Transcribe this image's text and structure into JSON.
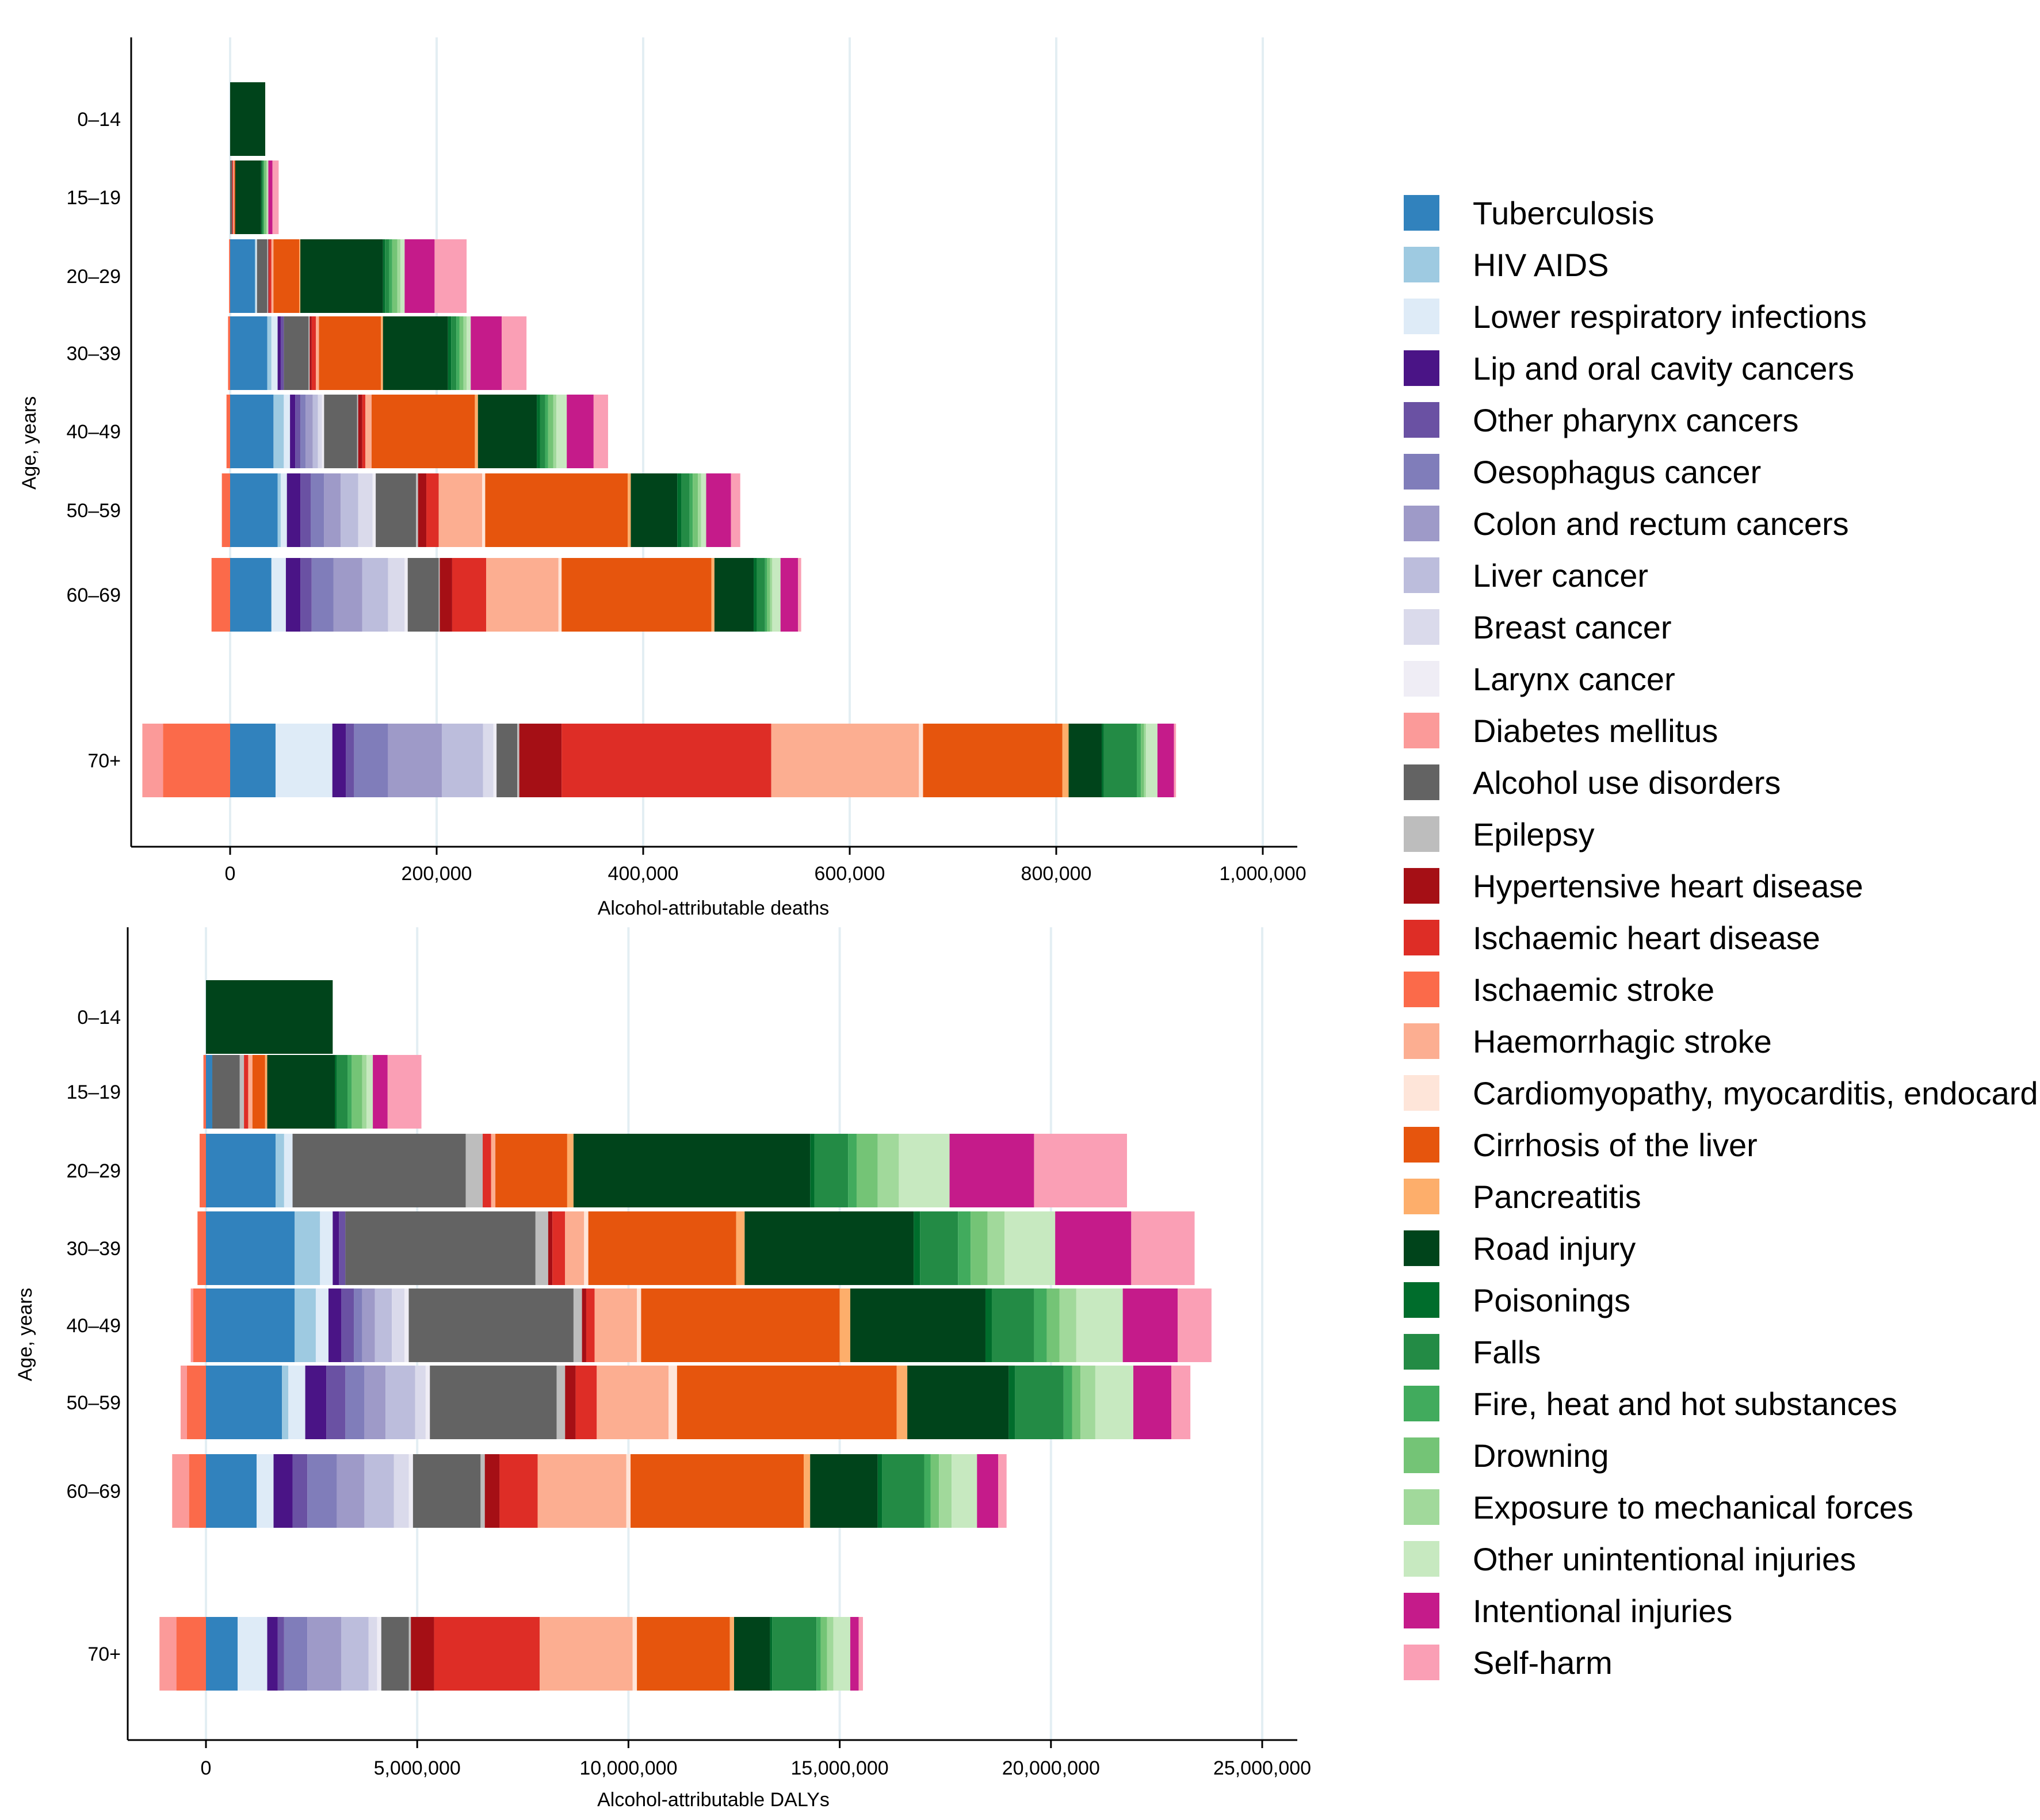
{
  "colors": {
    "Tuberculosis": "#3182bd",
    "HIV AIDS": "#9ecae1",
    "Lower respiratory infections": "#deebf7",
    "Lip and oral cavity cancers": "#4a1486",
    "Other pharynx cancers": "#6a51a3",
    "Oesophagus cancer": "#807dba",
    "Colon and rectum cancers": "#9e9ac8",
    "Liver cancer": "#bcbddc",
    "Breast cancer": "#dadaeb",
    "Larynx cancer": "#efedf5",
    "Diabetes mellitus": "#fb9a99",
    "Alcohol use disorders": "#636363",
    "Epilepsy": "#bdbdbd",
    "Hypertensive heart disease": "#a50f15",
    "Ischaemic heart disease": "#de2d26",
    "Ischaemic stroke": "#fb6a4a",
    "Haemorrhagic stroke": "#fcae91",
    "Cardiomyopathy, myocarditis, endocarditis": "#fee5d9",
    "Cirrhosis of the liver": "#e6550d",
    "Pancreatitis": "#fdae6b",
    "Road injury": "#00441b",
    "Poisonings": "#006d2c",
    "Falls": "#238b45",
    "Fire, heat and hot substances": "#41ab5d",
    "Drowning": "#74c476",
    "Exposure to mechanical forces": "#a1d99b",
    "Other unintentional injuries": "#c7e9c0",
    "Intentional injuries": "#c51b8a",
    "Self-harm": "#fa9fb5"
  },
  "chart_data": [
    {
      "type": "bar",
      "orientation": "horizontal",
      "stacked": true,
      "title": "",
      "xlabel": "Alcohol-attributable deaths",
      "ylabel": "Age, years",
      "xlim": [
        -95000,
        1030000
      ],
      "x_ticks": [
        0,
        200000,
        400000,
        600000,
        800000,
        1000000
      ],
      "x_tick_labels": [
        "0",
        "200,000",
        "400,000",
        "600,000",
        "800,000",
        "1,000,000"
      ],
      "categories": [
        "0–14",
        "15–19",
        "20–29",
        "30–39",
        "40–49",
        "50–59",
        "60–69",
        "70+"
      ],
      "series": [
        {
          "name": "Ischaemic stroke",
          "side": "negative",
          "values": [
            0,
            0,
            -1000,
            -2000,
            -3500,
            -8000,
            -18000,
            -65000
          ]
        },
        {
          "name": "Diabetes mellitus",
          "side": "negative",
          "values": [
            0,
            0,
            0,
            0,
            0,
            0,
            0,
            -20000
          ]
        },
        {
          "name": "Tuberculosis",
          "values": [
            0,
            0,
            24000,
            36000,
            42000,
            46000,
            40000,
            44000
          ]
        },
        {
          "name": "HIV AIDS",
          "values": [
            0,
            0,
            1000,
            4000,
            10000,
            3000,
            0,
            0
          ]
        },
        {
          "name": "Lower respiratory infections",
          "values": [
            0,
            0,
            1000,
            6000,
            6000,
            6000,
            14000,
            55000
          ]
        },
        {
          "name": "Lip and oral cavity cancers",
          "values": [
            0,
            0,
            0,
            3000,
            5000,
            13000,
            14000,
            13000
          ]
        },
        {
          "name": "Other pharynx cancers",
          "values": [
            0,
            0,
            0,
            3000,
            5000,
            10000,
            11000,
            8000
          ]
        },
        {
          "name": "Oesophagus cancer",
          "values": [
            0,
            0,
            0,
            0,
            5000,
            13000,
            21000,
            33000
          ]
        },
        {
          "name": "Colon and rectum cancers",
          "values": [
            0,
            0,
            0,
            0,
            7000,
            16000,
            28000,
            52000
          ]
        },
        {
          "name": "Liver cancer",
          "values": [
            0,
            0,
            0,
            0,
            5000,
            17000,
            25000,
            40000
          ]
        },
        {
          "name": "Breast cancer",
          "values": [
            0,
            0,
            0,
            0,
            4000,
            14000,
            16000,
            10000
          ]
        },
        {
          "name": "Larynx cancer",
          "values": [
            0,
            0,
            0,
            0,
            2000,
            3000,
            3000,
            3000
          ]
        },
        {
          "name": "Alcohol use disorders",
          "values": [
            0,
            2000,
            10000,
            24000,
            32000,
            39000,
            30000,
            20000
          ]
        },
        {
          "name": "Epilepsy",
          "values": [
            0,
            0,
            1000,
            1000,
            1000,
            2000,
            1000,
            2000
          ]
        },
        {
          "name": "Hypertensive heart disease",
          "values": [
            0,
            0,
            1000,
            2000,
            4000,
            8000,
            12000,
            41000
          ]
        },
        {
          "name": "Ischaemic heart disease",
          "values": [
            0,
            1000,
            2000,
            4000,
            3000,
            12000,
            33000,
            203000
          ]
        },
        {
          "name": "Haemorrhagic stroke",
          "values": [
            0,
            1000,
            2000,
            3000,
            6000,
            42000,
            70000,
            143000
          ]
        },
        {
          "name": "Cardiomyopathy, myocarditis, endocarditis",
          "values": [
            0,
            0,
            0,
            0,
            0,
            3000,
            3000,
            4000
          ]
        },
        {
          "name": "Cirrhosis of the liver",
          "values": [
            0,
            1000,
            25000,
            60000,
            100000,
            138000,
            145000,
            135000
          ]
        },
        {
          "name": "Pancreatitis",
          "values": [
            0,
            0,
            1000,
            2000,
            3000,
            3000,
            3000,
            6000
          ]
        },
        {
          "name": "Road injury",
          "values": [
            34000,
            25000,
            80000,
            63000,
            57000,
            45000,
            38000,
            32000
          ]
        },
        {
          "name": "Poisonings",
          "values": [
            0,
            1000,
            2000,
            3000,
            3000,
            4000,
            3000,
            2000
          ]
        },
        {
          "name": "Falls",
          "values": [
            0,
            1000,
            4000,
            5000,
            5000,
            8000,
            8000,
            32000
          ]
        },
        {
          "name": "Fire, heat and hot substances",
          "values": [
            0,
            1000,
            3000,
            3000,
            3000,
            3000,
            2000,
            4000
          ]
        },
        {
          "name": "Drowning",
          "values": [
            0,
            2000,
            5000,
            4000,
            5000,
            5000,
            3000,
            3000
          ]
        },
        {
          "name": "Exposure to mechanical forces",
          "values": [
            0,
            1000,
            3000,
            3000,
            3000,
            3000,
            2000,
            2000
          ]
        },
        {
          "name": "Other unintentional injuries",
          "values": [
            0,
            1000,
            4000,
            4000,
            10000,
            5000,
            8000,
            11000
          ]
        },
        {
          "name": "Intentional injuries",
          "values": [
            0,
            4000,
            29000,
            30000,
            26000,
            24000,
            17000,
            16000
          ]
        },
        {
          "name": "Self-harm",
          "values": [
            0,
            6000,
            31000,
            24000,
            14000,
            9000,
            3000,
            2000
          ]
        }
      ]
    },
    {
      "type": "bar",
      "orientation": "horizontal",
      "stacked": true,
      "title": "",
      "xlabel": "Alcohol-attributable DALYs",
      "ylabel": "Age, years",
      "xlim": [
        -1900000,
        25700000
      ],
      "x_ticks": [
        0,
        5000000,
        10000000,
        15000000,
        20000000,
        25000000
      ],
      "x_tick_labels": [
        "0",
        "5,000,000",
        "10,000,000",
        "15,000,000",
        "20,000,000",
        "25,000,000"
      ],
      "categories": [
        "0–14",
        "15–19",
        "20–29",
        "30–39",
        "40–49",
        "50–59",
        "60–69",
        "70+"
      ],
      "series": [
        {
          "name": "Ischaemic stroke",
          "side": "negative",
          "values": [
            0,
            -60000,
            -150000,
            -200000,
            -300000,
            -450000,
            -400000,
            -700000
          ]
        },
        {
          "name": "Diabetes mellitus",
          "side": "negative",
          "values": [
            0,
            0,
            0,
            0,
            -60000,
            -150000,
            -400000,
            -400000
          ]
        },
        {
          "name": "Tuberculosis",
          "values": [
            0,
            150000,
            1650000,
            2100000,
            2100000,
            1800000,
            1200000,
            750000
          ]
        },
        {
          "name": "HIV AIDS",
          "values": [
            0,
            0,
            200000,
            600000,
            500000,
            150000,
            0,
            0
          ]
        },
        {
          "name": "Lower respiratory infections",
          "values": [
            0,
            0,
            200000,
            300000,
            300000,
            400000,
            400000,
            700000
          ]
        },
        {
          "name": "Lip and oral cavity cancers",
          "values": [
            0,
            0,
            0,
            150000,
            300000,
            500000,
            450000,
            250000
          ]
        },
        {
          "name": "Other pharynx cancers",
          "values": [
            0,
            0,
            0,
            150000,
            300000,
            450000,
            350000,
            150000
          ]
        },
        {
          "name": "Oesophagus cancer",
          "values": [
            0,
            0,
            0,
            0,
            200000,
            450000,
            700000,
            550000
          ]
        },
        {
          "name": "Colon and rectum cancers",
          "values": [
            0,
            0,
            0,
            0,
            300000,
            500000,
            650000,
            800000
          ]
        },
        {
          "name": "Liver cancer",
          "values": [
            0,
            0,
            0,
            0,
            400000,
            700000,
            700000,
            650000
          ]
        },
        {
          "name": "Breast cancer",
          "values": [
            0,
            0,
            0,
            0,
            300000,
            250000,
            350000,
            200000
          ]
        },
        {
          "name": "Larynx cancer",
          "values": [
            0,
            0,
            0,
            0,
            100000,
            100000,
            100000,
            100000
          ]
        },
        {
          "name": "Alcohol use disorders",
          "values": [
            0,
            650000,
            4100000,
            4500000,
            3900000,
            3000000,
            1600000,
            650000
          ]
        },
        {
          "name": "Epilepsy",
          "values": [
            0,
            100000,
            400000,
            300000,
            200000,
            200000,
            100000,
            50000
          ]
        },
        {
          "name": "Hypertensive heart disease",
          "values": [
            0,
            0,
            0,
            100000,
            100000,
            250000,
            350000,
            550000
          ]
        },
        {
          "name": "Ischaemic heart disease",
          "values": [
            0,
            100000,
            200000,
            300000,
            200000,
            500000,
            900000,
            2500000
          ]
        },
        {
          "name": "Haemorrhagic stroke",
          "values": [
            0,
            100000,
            100000,
            450000,
            1000000,
            1700000,
            2100000,
            2200000
          ]
        },
        {
          "name": "Cardiomyopathy, myocarditis, endocarditis",
          "values": [
            0,
            0,
            0,
            100000,
            100000,
            200000,
            100000,
            100000
          ]
        },
        {
          "name": "Cirrhosis of the liver",
          "values": [
            0,
            300000,
            1700000,
            3500000,
            4700000,
            5200000,
            4100000,
            2200000
          ]
        },
        {
          "name": "Pancreatitis",
          "values": [
            0,
            50000,
            150000,
            200000,
            250000,
            250000,
            150000,
            100000
          ]
        },
        {
          "name": "Road injury",
          "values": [
            3000000,
            1600000,
            5600000,
            4000000,
            3200000,
            2400000,
            1600000,
            850000
          ]
        },
        {
          "name": "Poisonings",
          "values": [
            0,
            50000,
            100000,
            150000,
            150000,
            150000,
            100000,
            50000
          ]
        },
        {
          "name": "Falls",
          "values": [
            0,
            250000,
            800000,
            900000,
            1000000,
            1150000,
            1000000,
            1050000
          ]
        },
        {
          "name": "Fire, heat and hot substances",
          "values": [
            0,
            100000,
            200000,
            300000,
            300000,
            200000,
            150000,
            100000
          ]
        },
        {
          "name": "Drowning",
          "values": [
            0,
            250000,
            500000,
            400000,
            300000,
            200000,
            200000,
            150000
          ]
        },
        {
          "name": "Exposure to mechanical forces",
          "values": [
            0,
            100000,
            500000,
            400000,
            400000,
            350000,
            300000,
            150000
          ]
        },
        {
          "name": "Other unintentional injuries",
          "values": [
            0,
            150000,
            1200000,
            1200000,
            1100000,
            900000,
            600000,
            400000
          ]
        },
        {
          "name": "Intentional injuries",
          "values": [
            0,
            350000,
            2000000,
            1800000,
            1300000,
            900000,
            500000,
            200000
          ]
        },
        {
          "name": "Self-harm",
          "values": [
            0,
            800000,
            2200000,
            1500000,
            800000,
            450000,
            200000,
            100000
          ]
        }
      ]
    }
  ],
  "legend": {
    "placement": "right",
    "entries": [
      "Tuberculosis",
      "HIV AIDS",
      "Lower respiratory infections",
      "Lip and oral cavity cancers",
      "Other pharynx cancers",
      "Oesophagus cancer",
      "Colon and rectum cancers",
      "Liver cancer",
      "Breast cancer",
      "Larynx cancer",
      "Diabetes mellitus",
      "Alcohol use disorders",
      "Epilepsy",
      "Hypertensive heart disease",
      "Ischaemic heart disease",
      "Ischaemic stroke",
      "Haemorrhagic stroke",
      "Cardiomyopathy, myocarditis, endocarditis",
      "Cirrhosis of the liver",
      "Pancreatitis",
      "Road injury",
      "Poisonings",
      "Falls",
      "Fire, heat and hot substances",
      "Drowning",
      "Exposure to mechanical forces",
      "Other unintentional injuries",
      "Intentional injuries",
      "Self-harm"
    ]
  }
}
